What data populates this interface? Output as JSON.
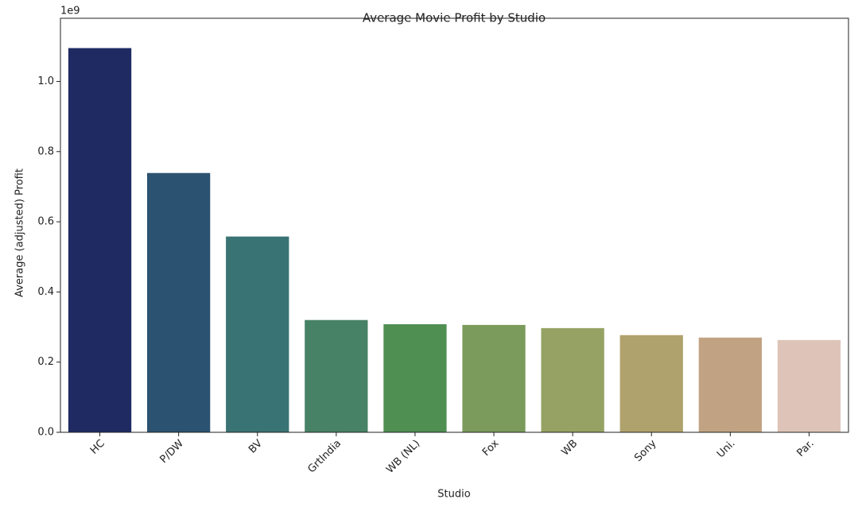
{
  "chart_data": {
    "type": "bar",
    "title": "Average Movie Profit by Studio",
    "x_label": "Studio",
    "y_label": "Average (adjusted) Profit",
    "y_offset_label": "1e9",
    "categories": [
      "HC",
      "P/DW",
      "BV",
      "GrtIndia",
      "WB (NL)",
      "Fox",
      "WB",
      "Sony",
      "Uni.",
      "Par."
    ],
    "values": [
      1.095,
      0.739,
      0.558,
      0.32,
      0.308,
      0.306,
      0.297,
      0.277,
      0.27,
      0.263
    ],
    "colors": [
      "#1f2a63",
      "#2b5270",
      "#3a7373",
      "#478266",
      "#4f8f52",
      "#7a9b5b",
      "#96a264",
      "#b0a26d",
      "#c1a383",
      "#dec4b8"
    ],
    "ylim": [
      0,
      1.18
    ],
    "yticks": [
      {
        "value": 0,
        "label": "0.0"
      },
      0.2,
      0.4,
      0.6,
      0.8,
      {
        "value": 1,
        "label": "1.0"
      }
    ]
  }
}
